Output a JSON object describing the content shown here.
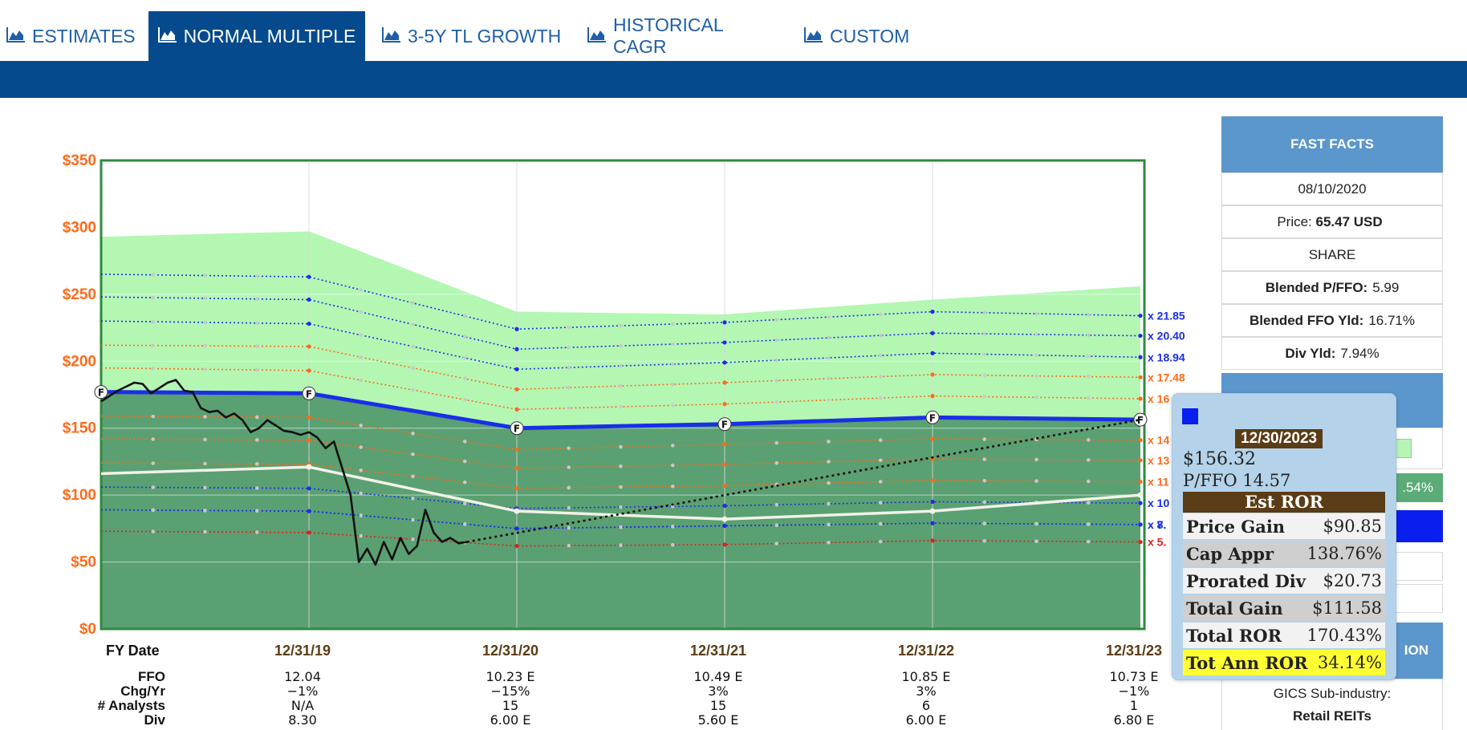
{
  "tabs": [
    {
      "label": "ESTIMATES",
      "active": false
    },
    {
      "label": "NORMAL MULTIPLE",
      "active": true
    },
    {
      "label": "3-5Y TL GROWTH",
      "active": false
    },
    {
      "label": "HISTORICAL CAGR",
      "active": false
    },
    {
      "label": "CUSTOM",
      "active": false
    }
  ],
  "fast_facts": {
    "header": "FAST FACTS",
    "date": "08/10/2020",
    "price_label": "Price:",
    "price_value": "65.47 USD",
    "share": "SHARE",
    "pffo_label": "Blended P/FFO:",
    "pffo_value": "5.99",
    "ffo_yld_label": "Blended FFO Yld:",
    "ffo_yld_value": "16.71%",
    "div_yld_label": "Div Yld:",
    "div_yld_value": "7.94%",
    "partial_pct": ".54%",
    "partial_header": "ION",
    "gics_label": "GICS Sub-industry:",
    "gics_value": "Retail REITs"
  },
  "tooltip": {
    "date": "12/30/2023",
    "price": "$156.32",
    "pffo": "P/FFO 14.57",
    "ror_header": "Est ROR",
    "rows": [
      {
        "label": "Price Gain",
        "value": "$90.85"
      },
      {
        "label": "Cap Appr",
        "value": "138.76%"
      },
      {
        "label": "Prorated Div",
        "value": "$20.73"
      },
      {
        "label": "Total Gain",
        "value": "$111.58"
      },
      {
        "label": "Total ROR",
        "value": "170.43%"
      },
      {
        "label": "Tot Ann ROR",
        "value": "34.14%"
      }
    ]
  },
  "chart_data": {
    "type": "area",
    "ylim": [
      0,
      350
    ],
    "y_ticks": [
      "$0",
      "$50",
      "$100",
      "$150",
      "$200",
      "$250",
      "$300",
      "$350"
    ],
    "y_tick_values": [
      0,
      50,
      100,
      150,
      200,
      250,
      300,
      350
    ],
    "x_categories": [
      "12/31/19",
      "12/31/20",
      "12/31/21",
      "12/31/22",
      "12/31/23"
    ],
    "x_label": "FY Date",
    "table_rows": [
      {
        "label": "FFO",
        "values": [
          "12.04",
          "10.23 E",
          "10.49 E",
          "10.85 E",
          "10.73 E"
        ]
      },
      {
        "label": "Chg/Yr",
        "values": [
          "−1%",
          "−15%",
          "3%",
          "3%",
          "−1%"
        ]
      },
      {
        "label": "# Analysts",
        "values": [
          "N/A",
          "15",
          "15",
          "6",
          "1"
        ]
      },
      {
        "label": "Div",
        "values": [
          "8.30",
          "6.00 E",
          "5.60 E",
          "6.00 E",
          "6.80 E"
        ]
      }
    ],
    "upper_area": [
      293,
      297,
      237,
      235,
      246,
      256
    ],
    "normal_value_line": [
      177,
      176,
      150,
      153,
      158,
      156.32
    ],
    "normal_color": "#1a2ee8",
    "white_line": [
      116,
      121,
      88,
      82,
      88,
      100
    ],
    "multiple_lines": [
      {
        "label": "x 21.85",
        "color": "#1a2ee8",
        "values": [
          265,
          263,
          224,
          229,
          237,
          234
        ]
      },
      {
        "label": "x 20.40",
        "color": "#1a2ee8",
        "values": [
          248,
          246,
          209,
          214,
          221,
          219
        ]
      },
      {
        "label": "x 18.94",
        "color": "#1a2ee8",
        "values": [
          230,
          228,
          194,
          199,
          206,
          203
        ]
      },
      {
        "label": "x 17.48",
        "color": "#ff6a1a",
        "values": [
          212,
          211,
          179,
          184,
          190,
          188
        ]
      },
      {
        "label": "x 16",
        "color": "#ff6a1a",
        "values": [
          195,
          193,
          164,
          168,
          174,
          172
        ]
      },
      {
        "label": "x 13",
        "color": "#ff6a1a",
        "values": [
          142,
          141,
          120,
          123,
          127,
          126
        ]
      },
      {
        "label": "x 11",
        "color": "#ff6a1a",
        "values": [
          124,
          123,
          105,
          107,
          111,
          110
        ]
      },
      {
        "label": "x 10",
        "color": "#1a2ee8",
        "values": [
          106,
          105,
          90,
          92,
          95,
          94
        ]
      },
      {
        "label": "x 8.",
        "color": "#1a2ee8",
        "values": [
          89,
          88,
          75,
          77,
          79,
          78
        ]
      },
      {
        "label": "x 7.",
        "color": "#1a2ee8",
        "values": [
          89,
          88,
          75,
          77,
          79,
          78
        ]
      },
      {
        "label": "x 5.",
        "color": "#e02020",
        "values": [
          73,
          72,
          62,
          63,
          66,
          65
        ]
      },
      {
        "label": "x 14",
        "color": "#ff6a1a",
        "values": [
          159,
          158,
          134,
          138,
          142,
          141
        ]
      }
    ],
    "price_history_x": [
      0,
      0.08,
      0.12,
      0.16,
      0.2,
      0.24,
      0.28,
      0.32,
      0.36,
      0.4,
      0.44,
      0.48,
      0.52,
      0.56,
      0.6,
      0.64,
      0.68,
      0.72,
      0.76,
      0.8,
      0.84,
      0.88,
      0.92,
      0.96,
      1.0,
      1.04,
      1.08,
      1.12,
      1.16,
      1.2,
      1.24,
      1.28,
      1.32,
      1.36,
      1.4,
      1.44,
      1.48,
      1.52,
      1.56,
      1.6,
      1.64,
      1.68,
      1.72,
      1.76
    ],
    "price_history": [
      170,
      178,
      181,
      184,
      183,
      176,
      180,
      184,
      186,
      178,
      177,
      165,
      162,
      163,
      158,
      161,
      156,
      147,
      150,
      156,
      152,
      148,
      147,
      145,
      147,
      143,
      135,
      140,
      120,
      100,
      50,
      60,
      48,
      65,
      52,
      68,
      56,
      62,
      89,
      72,
      65,
      68,
      64,
      65
    ],
    "projection_end": 156.32
  }
}
